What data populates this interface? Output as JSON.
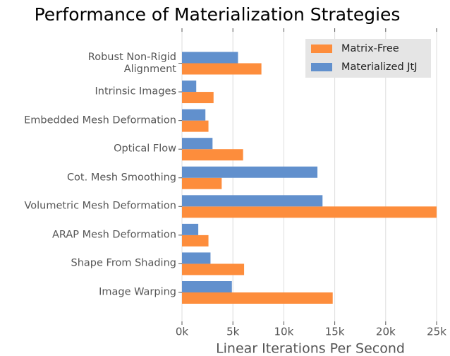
{
  "chart_data": {
    "type": "barh",
    "title": "Performance of Materialization Strategies",
    "xlabel": "Linear Iterations Per Second",
    "categories": [
      "Robust Non-Rigid\nAlignment",
      "Intrinsic Images",
      "Embedded Mesh Deformation",
      "Optical Flow",
      "Cot. Mesh Smoothing",
      "Volumetric Mesh Deformation",
      "ARAP Mesh Deformation",
      "Shape From Shading",
      "Image Warping"
    ],
    "series": [
      {
        "name": "Matrix-Free",
        "color": "#fd8d3c",
        "values": [
          7800,
          3100,
          2600,
          6000,
          3900,
          25000,
          2600,
          6100,
          14800
        ]
      },
      {
        "name": "Materialized JtJ",
        "color": "#6190cd",
        "values": [
          5500,
          1400,
          2300,
          3000,
          13300,
          13800,
          1600,
          2800,
          4900
        ]
      }
    ],
    "xlim": [
      0,
      25000
    ],
    "xticks": [
      {
        "value": 0,
        "label": "0k"
      },
      {
        "value": 5000,
        "label": "5k"
      },
      {
        "value": 10000,
        "label": "10k"
      },
      {
        "value": 15000,
        "label": "15k"
      },
      {
        "value": 20000,
        "label": "20k"
      },
      {
        "value": 25000,
        "label": "25k"
      }
    ],
    "grid": true,
    "legend": "upper right"
  }
}
